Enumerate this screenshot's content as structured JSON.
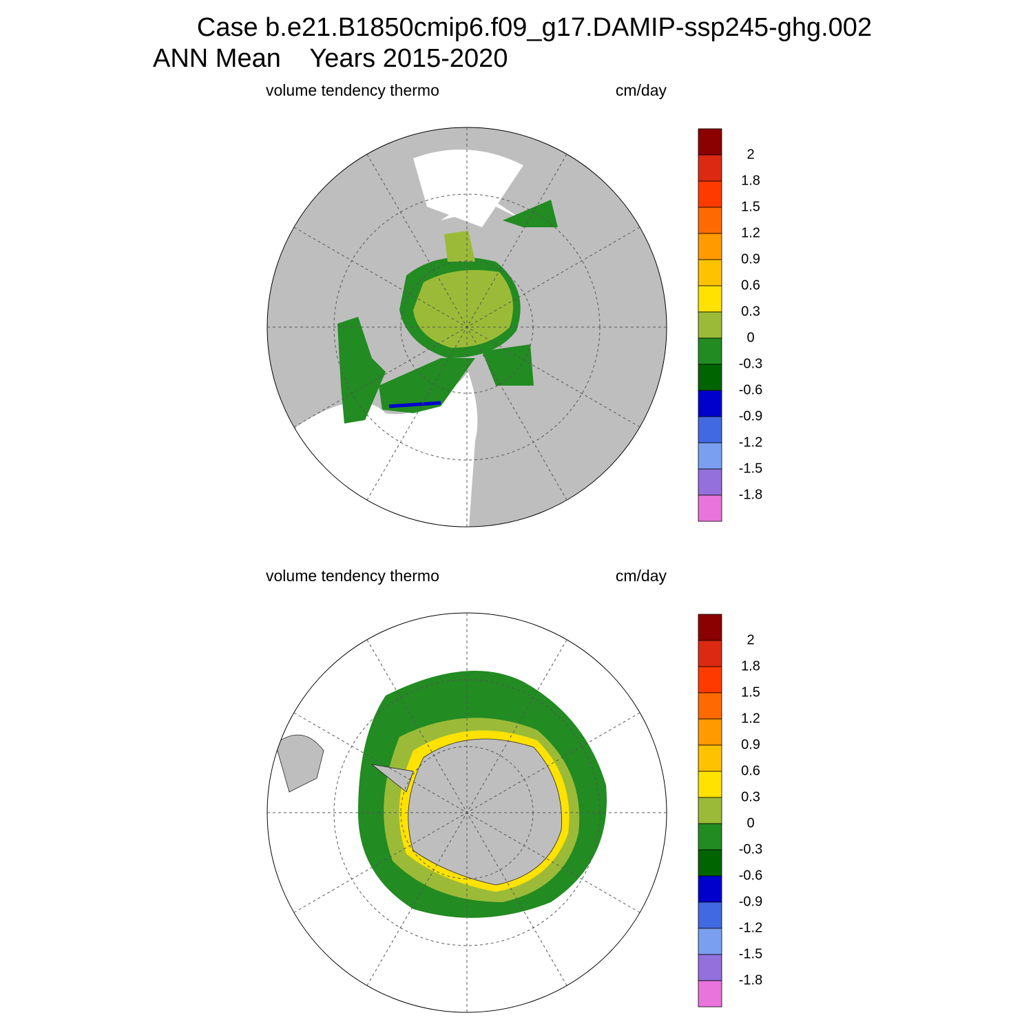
{
  "title": [
    "Case b.e21.B1850cmip6.f09_g17.DAMIP-ssp245-ghg.002",
    "ANN Mean    Years 2015-2020"
  ],
  "panels": [
    {
      "left_string": "volume tendency thermo",
      "right_string": "cm/day"
    },
    {
      "left_string": "volume tendency thermo",
      "right_string": "cm/day"
    }
  ],
  "colorbar": {
    "levels": [
      2,
      1.8,
      1.5,
      1.2,
      0.9,
      0.6,
      0.3,
      0,
      -0.3,
      -0.6,
      -0.9,
      -1.2,
      -1.5,
      -1.8
    ],
    "colors": [
      "#8b0000",
      "#dc2a12",
      "#ff3a00",
      "#ff6a00",
      "#ff9a00",
      "#ffc200",
      "#ffe200",
      "#9bbb38",
      "#228b22",
      "#006400",
      "#0000cd",
      "#4169e1",
      "#7b9ff0",
      "#9370db",
      "#e874dc"
    ]
  }
}
